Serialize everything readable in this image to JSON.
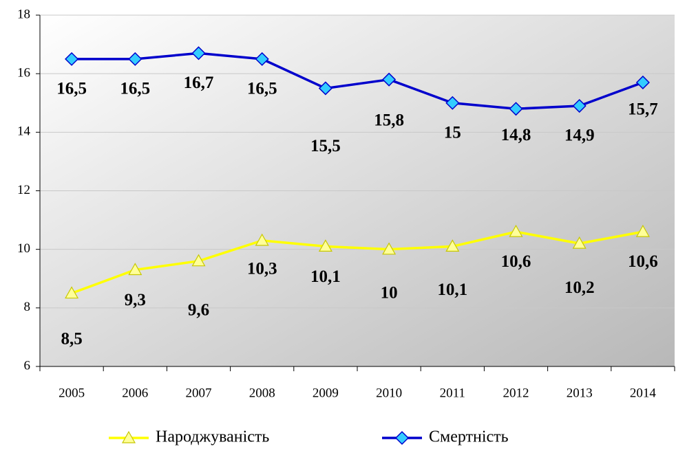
{
  "chart_data": {
    "type": "line",
    "categories": [
      "2005",
      "2006",
      "2007",
      "2008",
      "2009",
      "2010",
      "2011",
      "2012",
      "2013",
      "2014"
    ],
    "series": [
      {
        "name": "Народжуваність",
        "color": "#ffff00",
        "marker": "triangle",
        "values": [
          8.5,
          9.3,
          9.6,
          10.3,
          10.1,
          10,
          10.1,
          10.6,
          10.2,
          10.6
        ],
        "value_labels": [
          "8,5",
          "9,3",
          "9,6",
          "10,3",
          "10,1",
          "10",
          "10,1",
          "10,6",
          "10,2",
          "10,6"
        ]
      },
      {
        "name": "Смертність",
        "color": "#0000cc",
        "marker": "diamond",
        "values": [
          16.5,
          16.5,
          16.7,
          16.5,
          15.5,
          15.8,
          15,
          14.8,
          14.9,
          15.7
        ],
        "value_labels": [
          "16,5",
          "16,5",
          "16,7",
          "16,5",
          "15,5",
          "15,8",
          "15",
          "14,8",
          "14,9",
          "15,7"
        ]
      }
    ],
    "ylim": [
      6,
      18
    ],
    "yticks": [
      6,
      8,
      10,
      12,
      14,
      16,
      18
    ],
    "grid": true,
    "legend": "bottom"
  }
}
